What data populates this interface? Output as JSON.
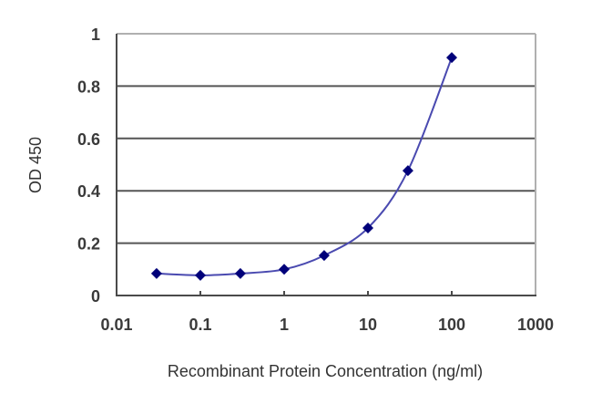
{
  "chart_data": {
    "type": "line",
    "title": "",
    "xlabel": "Recombinant Protein Concentration (ng/ml)",
    "ylabel": "OD 450",
    "xscale": "log",
    "xlim": [
      0.01,
      1000
    ],
    "ylim": [
      0,
      1
    ],
    "grid": {
      "horizontal": true,
      "vertical": false
    },
    "legend": null,
    "x_ticks": [
      "0.01",
      "0.1",
      "1",
      "10",
      "100",
      "1000"
    ],
    "y_ticks": [
      "0",
      "0.2",
      "0.4",
      "0.6",
      "0.8",
      "1"
    ],
    "series": [
      {
        "name": "OD 450",
        "marker": "diamond",
        "line": "smooth",
        "x": [
          0.03,
          0.1,
          0.3,
          1,
          3,
          10,
          30,
          100
        ],
        "values": [
          0.084,
          0.077,
          0.084,
          0.1,
          0.153,
          0.258,
          0.477,
          0.909
        ]
      }
    ]
  },
  "colors": {
    "marker": "#00007a",
    "line": "#4a4ab0",
    "gridline": "#555555",
    "axis": "#4a4a4a",
    "border": "#b0b0b0",
    "text": "#3a3a3a"
  }
}
